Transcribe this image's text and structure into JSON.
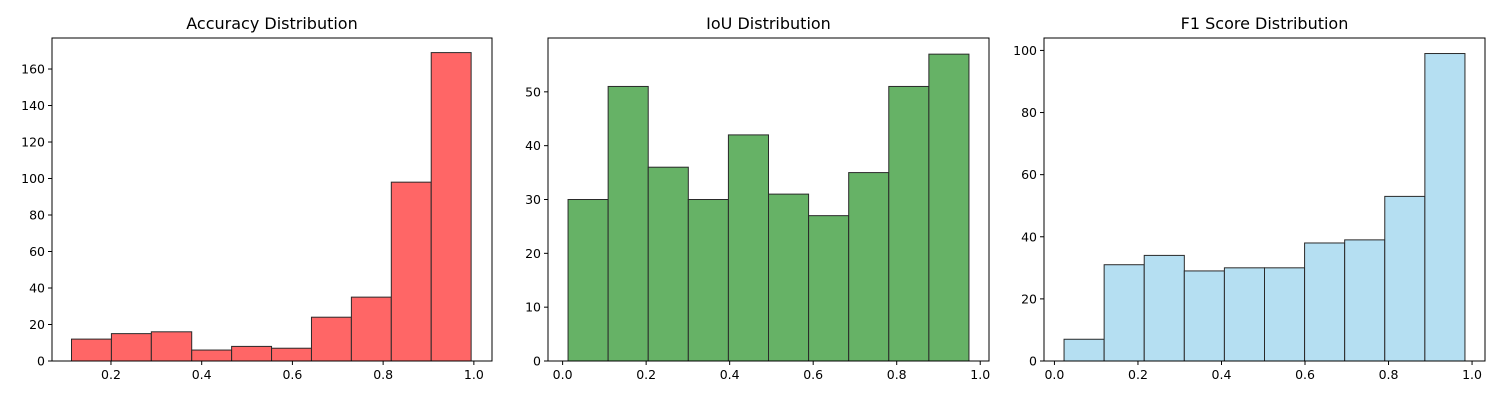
{
  "chart_data": [
    {
      "type": "bar",
      "title": "Accuracy Distribution",
      "color": "#ff6666",
      "bin_edges": [
        0.113,
        0.201,
        0.289,
        0.378,
        0.466,
        0.554,
        0.642,
        0.73,
        0.818,
        0.906,
        0.994
      ],
      "values": [
        12,
        15,
        16,
        6,
        8,
        7,
        24,
        35,
        98,
        169
      ],
      "xlim": [
        0.07,
        1.04
      ],
      "ylim": [
        0,
        177
      ],
      "xticks": [
        0.2,
        0.4,
        0.6,
        0.8,
        1.0
      ],
      "xtick_labels": [
        "0.2",
        "0.4",
        "0.6",
        "0.8",
        "1.0"
      ],
      "yticks": [
        0,
        20,
        40,
        60,
        80,
        100,
        120,
        140,
        160
      ],
      "ytick_labels": [
        "0",
        "20",
        "40",
        "60",
        "80",
        "100",
        "120",
        "140",
        "160"
      ],
      "grid": false
    },
    {
      "type": "bar",
      "title": "IoU Distribution",
      "color": "#66b266",
      "bin_edges": [
        0.013,
        0.109,
        0.205,
        0.301,
        0.397,
        0.493,
        0.589,
        0.685,
        0.781,
        0.877,
        0.973
      ],
      "values": [
        30,
        51,
        36,
        30,
        42,
        31,
        27,
        35,
        51,
        57
      ],
      "xlim": [
        -0.035,
        1.021
      ],
      "ylim": [
        0,
        60
      ],
      "xticks": [
        0.0,
        0.2,
        0.4,
        0.6,
        0.8,
        1.0
      ],
      "xtick_labels": [
        "0.0",
        "0.2",
        "0.4",
        "0.6",
        "0.8",
        "1.0"
      ],
      "yticks": [
        0,
        10,
        20,
        30,
        40,
        50
      ],
      "ytick_labels": [
        "0",
        "10",
        "20",
        "30",
        "40",
        "50"
      ],
      "grid": false
    },
    {
      "type": "bar",
      "title": "F1 Score Distribution",
      "color": "#b5dff2",
      "bin_edges": [
        0.023,
        0.119,
        0.215,
        0.311,
        0.407,
        0.503,
        0.599,
        0.695,
        0.791,
        0.887,
        0.983
      ],
      "values": [
        7,
        31,
        34,
        29,
        30,
        30,
        38,
        39,
        53,
        99
      ],
      "xlim": [
        -0.025,
        1.031
      ],
      "ylim": [
        0,
        104
      ],
      "xticks": [
        0.0,
        0.2,
        0.4,
        0.6,
        0.8,
        1.0
      ],
      "xtick_labels": [
        "0.0",
        "0.2",
        "0.4",
        "0.6",
        "0.8",
        "1.0"
      ],
      "yticks": [
        0,
        20,
        40,
        60,
        80,
        100
      ],
      "ytick_labels": [
        "0",
        "20",
        "40",
        "60",
        "80",
        "100"
      ],
      "grid": false
    }
  ]
}
